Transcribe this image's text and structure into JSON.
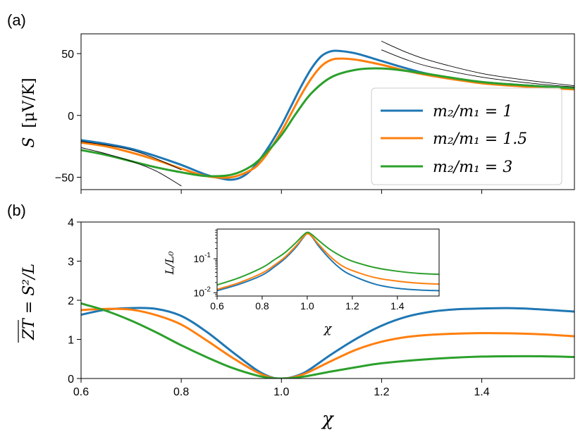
{
  "chart_data": [
    {
      "id": "a",
      "type": "line",
      "panel_label": "(a)",
      "ylabel": "S [μV/K]",
      "ylabel_parts": {
        "symbol": "S",
        "unit": "[μV/K]"
      },
      "xlim": [
        0.6,
        1.585
      ],
      "ylim": [
        -60,
        66
      ],
      "yticks": [
        -50,
        0,
        50
      ],
      "ytick_labels": [
        "−50",
        "0",
        "50"
      ],
      "xticks": [
        0.6,
        0.8,
        1.0,
        1.2,
        1.4
      ],
      "legend_placement": "bottom-right",
      "series": [
        {
          "name": "m2/m1 = 1",
          "color": "#1f77b4",
          "x": [
            0.6,
            0.65,
            0.7,
            0.75,
            0.8,
            0.85,
            0.88,
            0.9,
            0.92,
            0.94,
            0.96,
            0.98,
            1.0,
            1.02,
            1.04,
            1.06,
            1.08,
            1.1,
            1.12,
            1.15,
            1.2,
            1.25,
            1.3,
            1.4,
            1.5,
            1.585
          ],
          "y": [
            -20,
            -23,
            -27,
            -33,
            -40,
            -48,
            -51,
            -52,
            -50,
            -44,
            -34,
            -22,
            -8,
            8,
            24,
            38,
            48,
            52,
            52,
            50,
            44,
            38,
            33,
            27,
            24,
            22
          ]
        },
        {
          "name": "m2/m1 = 1.5",
          "color": "#ff7f0e",
          "x": [
            0.6,
            0.65,
            0.7,
            0.75,
            0.8,
            0.85,
            0.9,
            0.94,
            0.96,
            0.98,
            1.0,
            1.02,
            1.04,
            1.06,
            1.08,
            1.1,
            1.12,
            1.15,
            1.2,
            1.25,
            1.3,
            1.4,
            1.5,
            1.585
          ],
          "y": [
            -22,
            -25,
            -30,
            -36,
            -43,
            -49,
            -50,
            -44,
            -37,
            -26,
            -13,
            2,
            17,
            30,
            40,
            45,
            46,
            45,
            41,
            36,
            32,
            26,
            23,
            21
          ]
        },
        {
          "name": "m2/m1 = 3",
          "color": "#2ca02c",
          "x": [
            0.6,
            0.65,
            0.7,
            0.75,
            0.8,
            0.85,
            0.9,
            0.94,
            0.97,
            1.0,
            1.03,
            1.06,
            1.1,
            1.15,
            1.2,
            1.25,
            1.3,
            1.4,
            1.5,
            1.585
          ],
          "y": [
            -28,
            -32,
            -37,
            -42,
            -46,
            -49,
            -48,
            -41,
            -30,
            -16,
            2,
            18,
            31,
            37,
            38,
            36,
            33,
            27,
            24,
            22
          ]
        },
        {
          "name": "asymptote-low-1",
          "color": "#000000",
          "width": 0.9,
          "x": [
            0.6,
            0.65,
            0.7,
            0.75,
            0.8
          ],
          "y": [
            -21,
            -24,
            -28,
            -35,
            -44
          ]
        },
        {
          "name": "asymptote-low-2",
          "color": "#000000",
          "width": 0.9,
          "x": [
            0.6,
            0.65,
            0.7,
            0.75,
            0.8
          ],
          "y": [
            -26,
            -31,
            -37,
            -45,
            -57
          ]
        },
        {
          "name": "asymptote-high-1",
          "color": "#000000",
          "width": 0.9,
          "x": [
            1.2,
            1.25,
            1.3,
            1.4,
            1.5,
            1.585
          ],
          "y": [
            53,
            45,
            39,
            31,
            26,
            23
          ]
        },
        {
          "name": "asymptote-high-2",
          "color": "#000000",
          "width": 0.9,
          "x": [
            1.2,
            1.25,
            1.3,
            1.4,
            1.5,
            1.585
          ],
          "y": [
            60,
            51,
            44,
            34,
            28,
            24
          ]
        }
      ],
      "legend": [
        {
          "label": "m₂/m₁ = 1",
          "color": "#1f77b4"
        },
        {
          "label": "m₂/m₁ = 1.5",
          "color": "#ff7f0e"
        },
        {
          "label": "m₂/m₁ = 3",
          "color": "#2ca02c"
        }
      ]
    },
    {
      "id": "b",
      "type": "line",
      "panel_label": "(b)",
      "ylabel": "ZT = S²/L",
      "xlabel": "χ",
      "xlim": [
        0.6,
        1.585
      ],
      "ylim": [
        0,
        4
      ],
      "yticks": [
        0,
        1,
        2,
        3,
        4
      ],
      "ytick_labels": [
        "0",
        "1",
        "2",
        "3",
        "4"
      ],
      "xticks": [
        0.6,
        0.8,
        1.0,
        1.2,
        1.4
      ],
      "xtick_labels": [
        "0.6",
        "0.8",
        "1.0",
        "1.2",
        "1.4"
      ],
      "series": [
        {
          "name": "m2/m1 = 1",
          "color": "#1f77b4",
          "x": [
            0.6,
            0.65,
            0.7,
            0.75,
            0.8,
            0.85,
            0.9,
            0.95,
            0.98,
            1.0,
            1.02,
            1.05,
            1.1,
            1.15,
            1.2,
            1.25,
            1.3,
            1.35,
            1.4,
            1.45,
            1.5,
            1.585
          ],
          "y": [
            1.63,
            1.76,
            1.8,
            1.78,
            1.6,
            1.2,
            0.7,
            0.22,
            0.03,
            0.0,
            0.03,
            0.18,
            0.62,
            1.02,
            1.35,
            1.58,
            1.71,
            1.77,
            1.79,
            1.8,
            1.78,
            1.71
          ]
        },
        {
          "name": "m2/m1 = 1.5",
          "color": "#ff7f0e",
          "x": [
            0.6,
            0.65,
            0.7,
            0.75,
            0.8,
            0.85,
            0.9,
            0.95,
            0.98,
            1.0,
            1.02,
            1.05,
            1.1,
            1.15,
            1.2,
            1.25,
            1.3,
            1.4,
            1.5,
            1.585
          ],
          "y": [
            1.75,
            1.78,
            1.76,
            1.62,
            1.38,
            0.98,
            0.55,
            0.17,
            0.02,
            0.0,
            0.02,
            0.14,
            0.45,
            0.74,
            0.94,
            1.06,
            1.12,
            1.16,
            1.14,
            1.08
          ]
        },
        {
          "name": "m2/m1 = 3",
          "color": "#2ca02c",
          "x": [
            0.6,
            0.65,
            0.7,
            0.75,
            0.8,
            0.85,
            0.9,
            0.95,
            0.98,
            1.0,
            1.02,
            1.05,
            1.1,
            1.15,
            1.2,
            1.3,
            1.4,
            1.5,
            1.585
          ],
          "y": [
            1.92,
            1.73,
            1.48,
            1.18,
            0.85,
            0.55,
            0.28,
            0.08,
            0.01,
            0.0,
            0.01,
            0.06,
            0.18,
            0.29,
            0.39,
            0.5,
            0.56,
            0.57,
            0.55
          ]
        }
      ]
    },
    {
      "id": "inset",
      "type": "line",
      "ylabel": "L/L₀",
      "xlabel": "χ",
      "yscale": "log",
      "xlim": [
        0.6,
        1.585
      ],
      "ylim": [
        0.008,
        0.75
      ],
      "yticks": [
        0.01,
        0.1
      ],
      "ytick_labels": [
        {
          "base": "10",
          "exp": "-2"
        },
        {
          "base": "10",
          "exp": "-1"
        }
      ],
      "xticks": [
        0.6,
        0.8,
        1.0,
        1.2,
        1.4
      ],
      "xtick_labels": [
        "0.6",
        "0.8",
        "1.0",
        "1.2",
        "1.4"
      ],
      "series": [
        {
          "name": "m2/m1 = 1",
          "color": "#1f77b4",
          "x": [
            0.6,
            0.7,
            0.8,
            0.85,
            0.9,
            0.95,
            0.98,
            1.0,
            1.02,
            1.05,
            1.1,
            1.15,
            1.2,
            1.3,
            1.4,
            1.5,
            1.585
          ],
          "y": [
            0.0115,
            0.018,
            0.033,
            0.055,
            0.1,
            0.22,
            0.4,
            0.55,
            0.45,
            0.24,
            0.1,
            0.05,
            0.032,
            0.018,
            0.0135,
            0.012,
            0.0115
          ]
        },
        {
          "name": "m2/m1 = 1.5",
          "color": "#ff7f0e",
          "x": [
            0.6,
            0.7,
            0.8,
            0.85,
            0.9,
            0.95,
            0.98,
            1.0,
            1.02,
            1.05,
            1.1,
            1.15,
            1.2,
            1.3,
            1.4,
            1.5,
            1.585
          ],
          "y": [
            0.0125,
            0.02,
            0.038,
            0.062,
            0.11,
            0.24,
            0.42,
            0.55,
            0.46,
            0.27,
            0.12,
            0.065,
            0.045,
            0.028,
            0.022,
            0.019,
            0.018
          ]
        },
        {
          "name": "m2/m1 = 3",
          "color": "#2ca02c",
          "x": [
            0.6,
            0.7,
            0.8,
            0.85,
            0.9,
            0.95,
            0.98,
            1.0,
            1.02,
            1.05,
            1.1,
            1.15,
            1.2,
            1.3,
            1.4,
            1.5,
            1.585
          ],
          "y": [
            0.017,
            0.028,
            0.055,
            0.09,
            0.15,
            0.3,
            0.48,
            0.6,
            0.52,
            0.35,
            0.19,
            0.12,
            0.085,
            0.055,
            0.043,
            0.037,
            0.035
          ]
        }
      ]
    }
  ]
}
